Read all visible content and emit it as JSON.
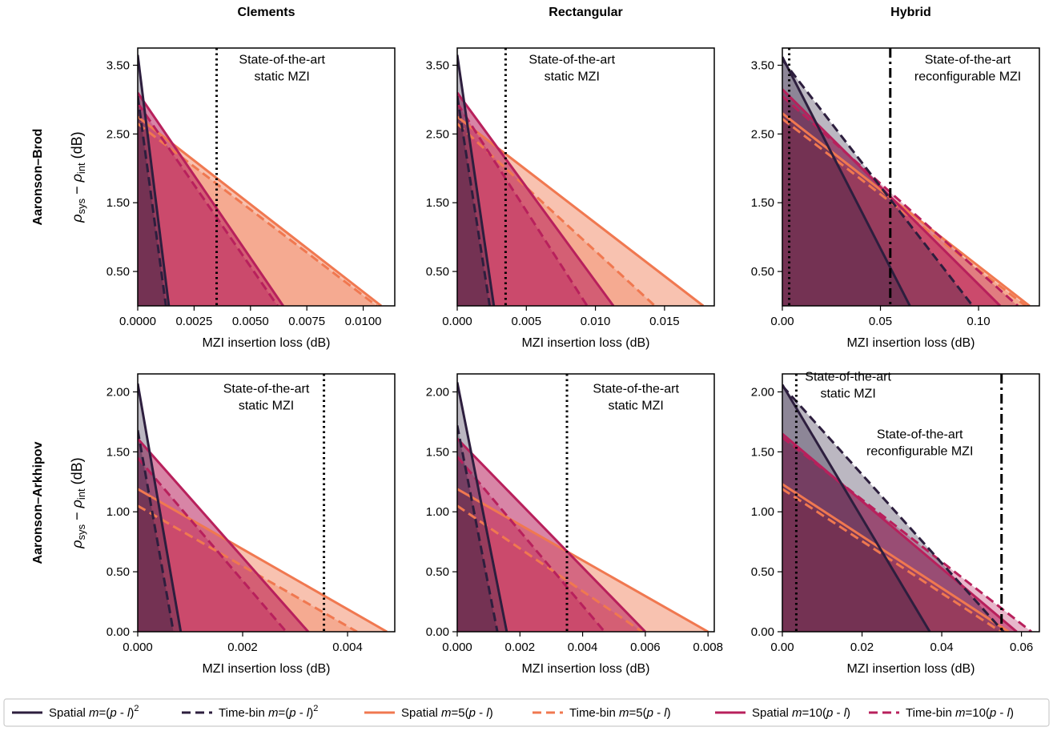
{
  "series_styles": [
    {
      "label": "Spatial m=(p - l)²",
      "color": "#2d1e3e",
      "dash": "solid"
    },
    {
      "label": "Time-bin m=(p - l)²",
      "color": "#2d1e3e",
      "dash": "dashed"
    },
    {
      "label": "Spatial m=5(p - l)",
      "color": "#f07850",
      "dash": "solid"
    },
    {
      "label": "Time-bin m=5(p - l)",
      "color": "#f07850",
      "dash": "dashed"
    },
    {
      "label": "Spatial m=10(p - l)",
      "color": "#b8205c",
      "dash": "solid"
    },
    {
      "label": "Time-bin m=10(p - l)",
      "color": "#b8205c",
      "dash": "dashed"
    }
  ],
  "legend": [
    {
      "pre": "Spatial ",
      "m": "m",
      "post": "=(",
      "p": "p",
      "mid": " - ",
      "l": "l",
      "end": ")",
      "sup": "2"
    },
    {
      "pre": "Time-bin ",
      "m": "m",
      "post": "=(",
      "p": "p",
      "mid": " - ",
      "l": "l",
      "end": ")",
      "sup": "2"
    },
    {
      "pre": "Spatial ",
      "m": "m",
      "post": "=5(",
      "p": "p",
      "mid": " - ",
      "l": "l",
      "end": ")",
      "sup": ""
    },
    {
      "pre": "Time-bin ",
      "m": "m",
      "post": "=5(",
      "p": "p",
      "mid": " - ",
      "l": "l",
      "end": ")",
      "sup": ""
    },
    {
      "pre": "Spatial ",
      "m": "m",
      "post": "=10(",
      "p": "p",
      "mid": " - ",
      "l": "l",
      "end": ")",
      "sup": ""
    },
    {
      "pre": "Time-bin ",
      "m": "m",
      "post": "=10(",
      "p": "p",
      "mid": " - ",
      "l": "l",
      "end": ")",
      "sup": ""
    }
  ],
  "column_titles": [
    "Clements",
    "Rectangular",
    "Hybrid"
  ],
  "row_titles": [
    "Aaronson–Brod",
    "Aaronson–Arkhipov"
  ],
  "ylabel": {
    "rho": "ρ",
    "sys": "sys",
    "minus": " − ",
    "int": "int",
    "unit": " (dB)"
  },
  "chart_data": [
    {
      "type": "area",
      "row": 0,
      "col": 0,
      "xlabel": "MZI insertion loss (dB)",
      "xlim": [
        0,
        0.0114
      ],
      "ylim": [
        0,
        3.75
      ],
      "xticks": [
        0.0,
        0.0025,
        0.005,
        0.0075,
        0.01
      ],
      "xtick_labels": [
        "0.0000",
        "0.0025",
        "0.0050",
        "0.0075",
        "0.0100"
      ],
      "yticks": [
        0.5,
        1.5,
        2.5,
        3.5
      ],
      "ytick_labels": [
        "0.50",
        "1.50",
        "2.50",
        "3.50"
      ],
      "vlines": [
        {
          "x": 0.0035,
          "style": "dotted",
          "label_lines": [
            "State-of-the-art",
            "static MZI"
          ],
          "label_x": 0.0064,
          "label_y": 3.5
        }
      ],
      "series": [
        {
          "y0": 3.65,
          "x1": 0.00138
        },
        {
          "y0": 3.05,
          "x1": 0.00125
        },
        {
          "y0": 2.75,
          "x1": 0.0108
        },
        {
          "y0": 2.65,
          "x1": 0.0106
        },
        {
          "y0": 3.1,
          "x1": 0.00645
        },
        {
          "y0": 2.95,
          "x1": 0.0062
        }
      ]
    },
    {
      "type": "area",
      "row": 0,
      "col": 1,
      "xlabel": "MZI insertion loss (dB)",
      "xlim": [
        0,
        0.0186
      ],
      "ylim": [
        0,
        3.75
      ],
      "xticks": [
        0.0,
        0.005,
        0.01,
        0.015
      ],
      "xtick_labels": [
        "0.000",
        "0.005",
        "0.010",
        "0.015"
      ],
      "yticks": [
        0.5,
        1.5,
        2.5,
        3.5
      ],
      "ytick_labels": [
        "0.50",
        "1.50",
        "2.50",
        "3.50"
      ],
      "vlines": [
        {
          "x": 0.0035,
          "style": "dotted",
          "label_lines": [
            "State-of-the-art",
            "static MZI"
          ],
          "label_x": 0.0083,
          "label_y": 3.5
        }
      ],
      "series": [
        {
          "y0": 3.65,
          "x1": 0.00265
        },
        {
          "y0": 3.05,
          "x1": 0.00235
        },
        {
          "y0": 2.75,
          "x1": 0.0178
        },
        {
          "y0": 2.65,
          "x1": 0.0143
        },
        {
          "y0": 3.1,
          "x1": 0.0113
        },
        {
          "y0": 2.95,
          "x1": 0.0094
        }
      ]
    },
    {
      "type": "area",
      "row": 0,
      "col": 2,
      "xlabel": "MZI insertion loss (dB)",
      "xlim": [
        0,
        0.131
      ],
      "ylim": [
        0,
        3.75
      ],
      "xticks": [
        0.0,
        0.05,
        0.1
      ],
      "xtick_labels": [
        "0.00",
        "0.05",
        "0.10"
      ],
      "yticks": [
        0.5,
        1.5,
        2.5,
        3.5
      ],
      "ytick_labels": [
        "0.50",
        "1.50",
        "2.50",
        "3.50"
      ],
      "vlines": [
        {
          "x": 0.0035,
          "style": "dotted",
          "label_lines": [],
          "label_x": 0,
          "label_y": 0
        },
        {
          "x": 0.055,
          "style": "dashdot",
          "label_lines": [
            "State-of-the-art",
            "reconfigurable MZI"
          ],
          "label_x": 0.0945,
          "label_y": 3.5
        }
      ],
      "series": [
        {
          "y0": 3.62,
          "x1": 0.065
        },
        {
          "y0": 3.58,
          "x1": 0.097
        },
        {
          "y0": 2.8,
          "x1": 0.126
        },
        {
          "y0": 2.72,
          "x1": 0.124
        },
        {
          "y0": 3.15,
          "x1": 0.111
        },
        {
          "y0": 3.05,
          "x1": 0.12
        }
      ]
    },
    {
      "type": "area",
      "row": 1,
      "col": 0,
      "xlabel": "MZI insertion loss (dB)",
      "xlim": [
        0,
        0.0049
      ],
      "ylim": [
        0,
        2.15
      ],
      "xticks": [
        0.0,
        0.002,
        0.004
      ],
      "xtick_labels": [
        "0.000",
        "0.002",
        "0.004"
      ],
      "yticks": [
        0.0,
        0.5,
        1.0,
        1.5,
        2.0
      ],
      "ytick_labels": [
        "0.00",
        "0.50",
        "1.00",
        "1.50",
        "2.00"
      ],
      "vlines": [
        {
          "x": 0.00355,
          "style": "dotted",
          "label_lines": [
            "State-of-the-art",
            "static MZI"
          ],
          "label_x": 0.00245,
          "label_y": 1.98
        }
      ],
      "series": [
        {
          "y0": 2.07,
          "x1": 0.00082
        },
        {
          "y0": 1.68,
          "x1": 0.00068
        },
        {
          "y0": 1.19,
          "x1": 0.00475
        },
        {
          "y0": 1.05,
          "x1": 0.00418
        },
        {
          "y0": 1.61,
          "x1": 0.00325
        },
        {
          "y0": 1.45,
          "x1": 0.00283
        }
      ]
    },
    {
      "type": "area",
      "row": 1,
      "col": 1,
      "xlabel": "MZI insertion loss (dB)",
      "xlim": [
        0,
        0.0082
      ],
      "ylim": [
        0,
        2.15
      ],
      "xticks": [
        0.0,
        0.002,
        0.004,
        0.006,
        0.008
      ],
      "xtick_labels": [
        "0.000",
        "0.002",
        "0.004",
        "0.006",
        "0.008"
      ],
      "yticks": [
        0.0,
        0.5,
        1.0,
        1.5,
        2.0
      ],
      "ytick_labels": [
        "0.00",
        "0.50",
        "1.00",
        "1.50",
        "2.00"
      ],
      "vlines": [
        {
          "x": 0.0035,
          "style": "dotted",
          "label_lines": [
            "State-of-the-art",
            "static MZI"
          ],
          "label_x": 0.0057,
          "label_y": 1.98
        }
      ],
      "series": [
        {
          "y0": 2.08,
          "x1": 0.00158
        },
        {
          "y0": 1.72,
          "x1": 0.00128
        },
        {
          "y0": 1.19,
          "x1": 0.008
        },
        {
          "y0": 1.05,
          "x1": 0.0059
        },
        {
          "y0": 1.61,
          "x1": 0.006
        },
        {
          "y0": 1.46,
          "x1": 0.0047
        }
      ]
    },
    {
      "type": "area",
      "row": 1,
      "col": 2,
      "xlabel": "MZI insertion loss (dB)",
      "xlim": [
        0,
        0.0645
      ],
      "ylim": [
        0,
        2.15
      ],
      "xticks": [
        0.0,
        0.02,
        0.04,
        0.06
      ],
      "xtick_labels": [
        "0.00",
        "0.02",
        "0.04",
        "0.06"
      ],
      "yticks": [
        0.0,
        0.5,
        1.0,
        1.5,
        2.0
      ],
      "ytick_labels": [
        "0.00",
        "0.50",
        "1.00",
        "1.50",
        "2.00"
      ],
      "vlines": [
        {
          "x": 0.0035,
          "style": "dotted",
          "label_lines": [
            "State-of-the-art",
            "static MZI"
          ],
          "label_x": 0.0165,
          "label_y": 2.08
        },
        {
          "x": 0.055,
          "style": "dashdot",
          "label_lines": [
            "State-of-the-art",
            "reconfigurable MZI"
          ],
          "label_x": 0.0345,
          "label_y": 1.6
        }
      ],
      "series": [
        {
          "y0": 2.06,
          "x1": 0.037
        },
        {
          "y0": 2.05,
          "x1": 0.0555
        },
        {
          "y0": 1.23,
          "x1": 0.0568
        },
        {
          "y0": 1.19,
          "x1": 0.0548
        },
        {
          "y0": 1.65,
          "x1": 0.0588
        },
        {
          "y0": 1.62,
          "x1": 0.0625
        }
      ]
    }
  ]
}
